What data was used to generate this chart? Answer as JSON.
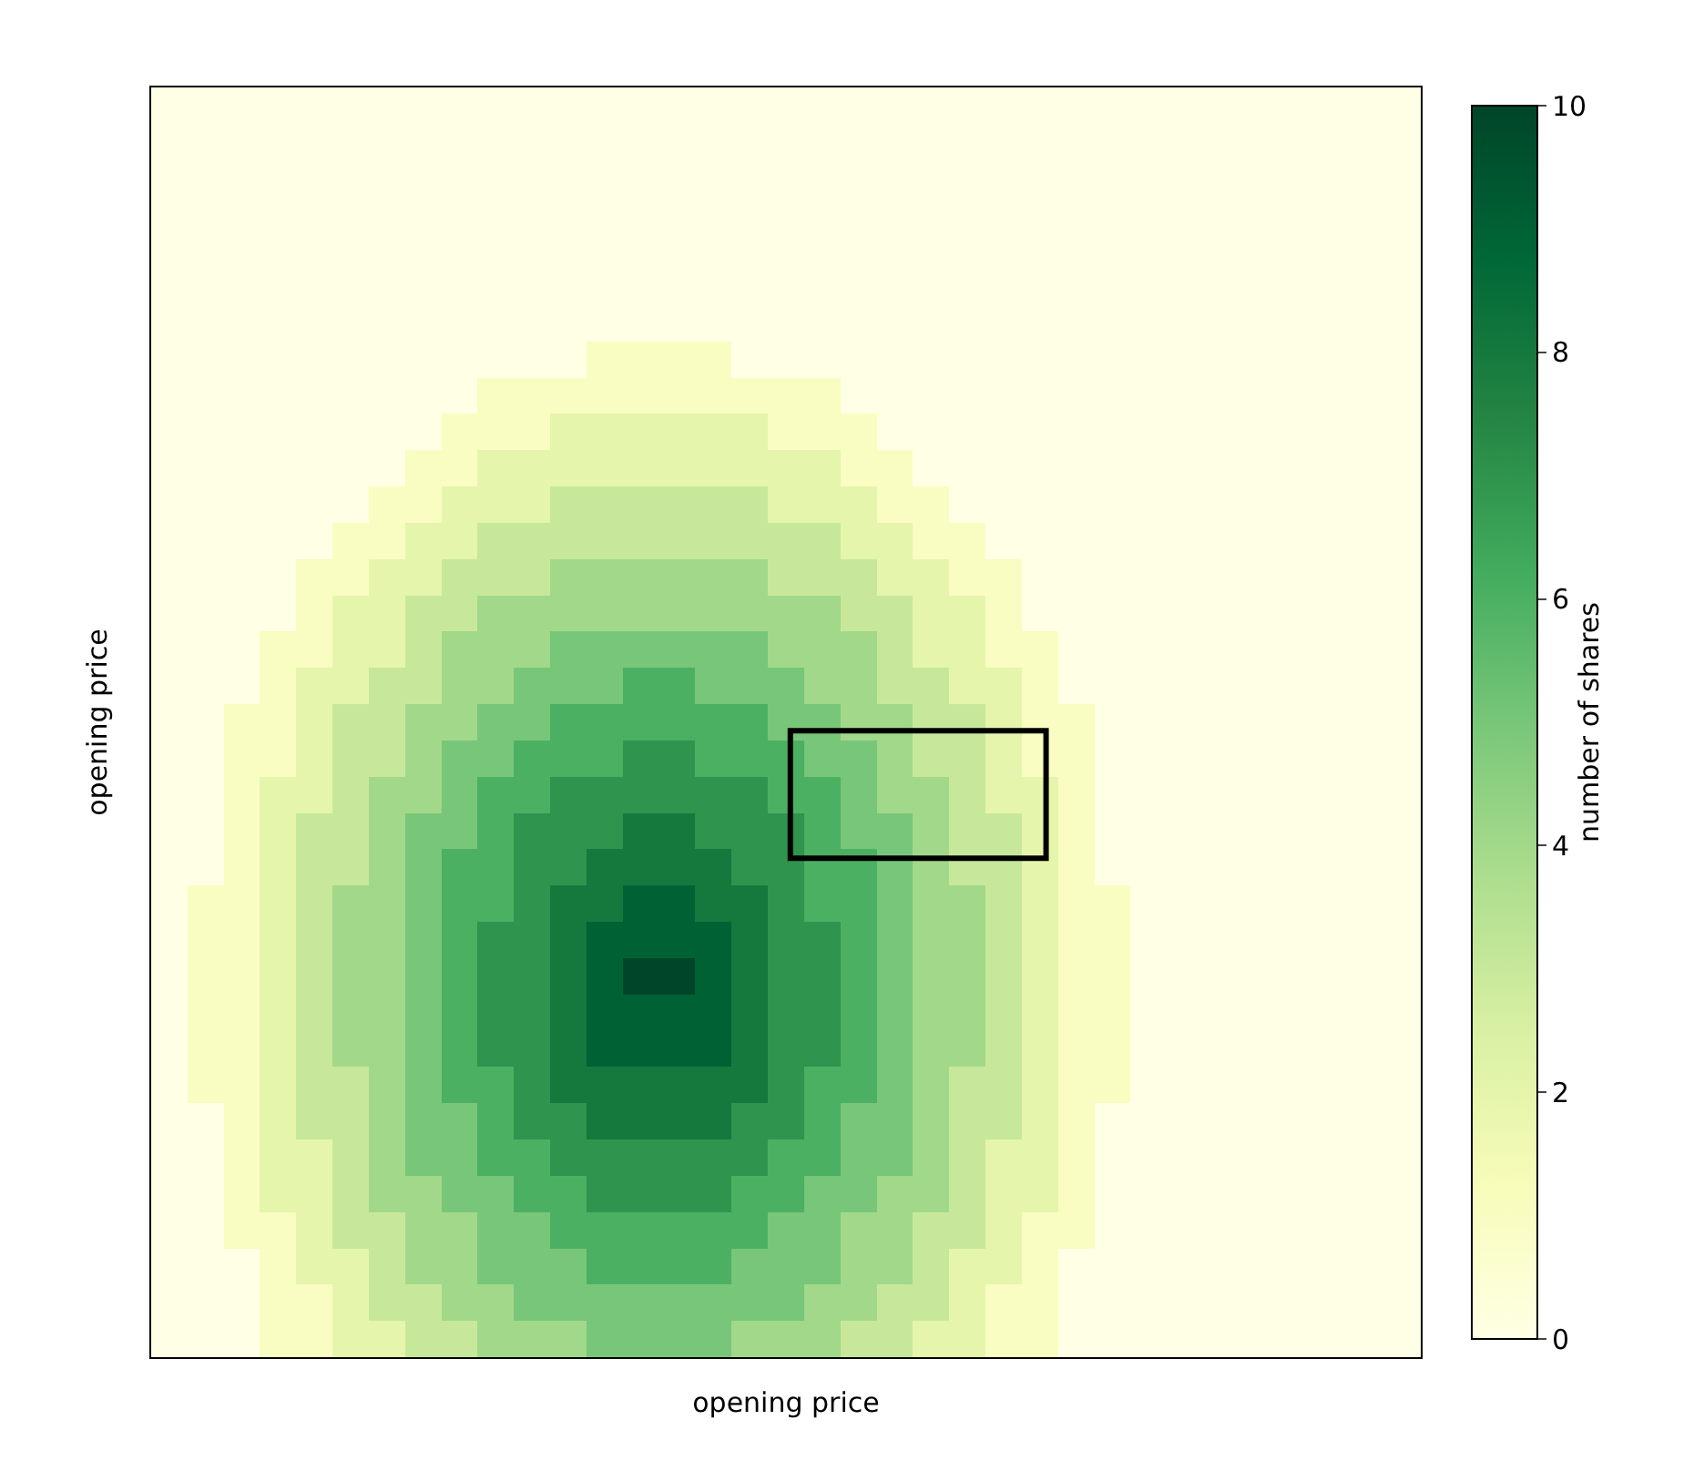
{
  "chart_data": {
    "type": "heatmap",
    "xlabel": "opening price",
    "ylabel": "opening price",
    "clabel": "number of shares",
    "clim": [
      0,
      10
    ],
    "cticks": [
      0,
      2,
      4,
      6,
      8,
      10
    ],
    "tick_labels": false,
    "categories": [
      null,
      null,
      null,
      null,
      null,
      null,
      null,
      null,
      null,
      null,
      null,
      null,
      null,
      null,
      null,
      null,
      null,
      null,
      null,
      null,
      null,
      null,
      null,
      null,
      null,
      null,
      null,
      null,
      null,
      null,
      null,
      null,
      null,
      null,
      null
    ],
    "y_categories": [
      null,
      null,
      null,
      null,
      null,
      null,
      null,
      null,
      null,
      null,
      null,
      null,
      null,
      null,
      null,
      null,
      null,
      null,
      null,
      null,
      null,
      null,
      null,
      null,
      null,
      null,
      null,
      null,
      null,
      null,
      null,
      null,
      null,
      null,
      null
    ],
    "cells": [
      [
        0,
        0,
        0,
        0,
        0,
        0,
        0,
        0,
        0,
        0,
        0,
        0,
        0,
        0,
        0,
        0,
        0,
        0,
        0,
        0,
        0,
        0,
        0,
        0,
        0,
        0,
        0,
        0,
        0,
        0,
        0,
        0,
        0,
        0,
        0
      ],
      [
        0,
        0,
        0,
        0,
        0,
        0,
        0,
        0,
        0,
        0,
        0,
        0,
        0,
        0,
        0,
        0,
        0,
        0,
        0,
        0,
        0,
        0,
        0,
        0,
        0,
        0,
        0,
        0,
        0,
        0,
        0,
        0,
        0,
        0,
        0
      ],
      [
        0,
        0,
        0,
        0,
        0,
        0,
        0,
        0,
        0,
        0,
        0,
        0,
        0,
        0,
        0,
        0,
        0,
        0,
        0,
        0,
        0,
        0,
        0,
        0,
        0,
        0,
        0,
        0,
        0,
        0,
        0,
        0,
        0,
        0,
        0
      ],
      [
        0,
        0,
        0,
        0,
        0,
        0,
        0,
        0,
        0,
        0,
        0,
        0,
        0,
        0,
        0,
        0,
        0,
        0,
        0,
        0,
        0,
        0,
        0,
        0,
        0,
        0,
        0,
        0,
        0,
        0,
        0,
        0,
        0,
        0,
        0
      ],
      [
        0,
        0,
        0,
        0,
        0,
        0,
        0,
        0,
        0,
        0,
        0,
        0,
        0,
        0,
        0,
        0,
        0,
        0,
        0,
        0,
        0,
        0,
        0,
        0,
        0,
        0,
        0,
        0,
        0,
        0,
        0,
        0,
        0,
        0,
        0
      ],
      [
        0,
        0,
        0,
        0,
        0,
        0,
        0,
        0,
        0,
        0,
        0,
        0,
        0,
        0,
        0,
        0,
        0,
        0,
        0,
        0,
        0,
        0,
        0,
        0,
        0,
        0,
        0,
        0,
        0,
        0,
        0,
        0,
        0,
        0,
        0
      ],
      [
        0,
        0,
        0,
        0,
        0,
        0,
        0,
        0,
        0,
        0,
        0,
        0,
        0,
        0,
        0,
        0,
        0,
        0,
        0,
        0,
        0,
        0,
        0,
        0,
        0,
        0,
        0,
        0,
        0,
        0,
        0,
        0,
        0,
        0,
        0
      ],
      [
        0,
        0,
        0,
        0,
        0,
        0,
        0,
        0,
        0,
        0,
        0,
        0,
        1,
        1,
        1,
        1,
        0,
        0,
        0,
        0,
        0,
        0,
        0,
        0,
        0,
        0,
        0,
        0,
        0,
        0,
        0,
        0,
        0,
        0,
        0
      ],
      [
        0,
        0,
        0,
        0,
        0,
        0,
        0,
        0,
        0,
        1,
        1,
        1,
        1,
        1,
        1,
        1,
        1,
        1,
        1,
        0,
        0,
        0,
        0,
        0,
        0,
        0,
        0,
        0,
        0,
        0,
        0,
        0,
        0,
        0,
        0
      ],
      [
        0,
        0,
        0,
        0,
        0,
        0,
        0,
        0,
        1,
        1,
        1,
        2,
        2,
        2,
        2,
        2,
        2,
        1,
        1,
        1,
        0,
        0,
        0,
        0,
        0,
        0,
        0,
        0,
        0,
        0,
        0,
        0,
        0,
        0,
        0
      ],
      [
        0,
        0,
        0,
        0,
        0,
        0,
        0,
        1,
        1,
        2,
        2,
        2,
        2,
        2,
        2,
        2,
        2,
        2,
        2,
        1,
        1,
        0,
        0,
        0,
        0,
        0,
        0,
        0,
        0,
        0,
        0,
        0,
        0,
        0,
        0
      ],
      [
        0,
        0,
        0,
        0,
        0,
        0,
        1,
        1,
        2,
        2,
        2,
        3,
        3,
        3,
        3,
        3,
        3,
        2,
        2,
        2,
        1,
        1,
        0,
        0,
        0,
        0,
        0,
        0,
        0,
        0,
        0,
        0,
        0,
        0,
        0
      ],
      [
        0,
        0,
        0,
        0,
        0,
        1,
        1,
        2,
        2,
        3,
        3,
        3,
        3,
        3,
        3,
        3,
        3,
        3,
        3,
        2,
        2,
        1,
        1,
        0,
        0,
        0,
        0,
        0,
        0,
        0,
        0,
        0,
        0,
        0,
        0
      ],
      [
        0,
        0,
        0,
        0,
        1,
        1,
        2,
        2,
        3,
        3,
        3,
        4,
        4,
        4,
        4,
        4,
        4,
        3,
        3,
        3,
        2,
        2,
        1,
        1,
        0,
        0,
        0,
        0,
        0,
        0,
        0,
        0,
        0,
        0,
        0
      ],
      [
        0,
        0,
        0,
        0,
        1,
        2,
        2,
        3,
        3,
        4,
        4,
        4,
        4,
        4,
        4,
        4,
        4,
        4,
        4,
        3,
        3,
        2,
        2,
        1,
        0,
        0,
        0,
        0,
        0,
        0,
        0,
        0,
        0,
        0,
        0
      ],
      [
        0,
        0,
        0,
        1,
        1,
        2,
        2,
        3,
        4,
        4,
        4,
        5,
        5,
        5,
        5,
        5,
        5,
        4,
        4,
        4,
        3,
        2,
        2,
        1,
        1,
        0,
        0,
        0,
        0,
        0,
        0,
        0,
        0,
        0,
        0
      ],
      [
        0,
        0,
        0,
        1,
        2,
        2,
        3,
        3,
        4,
        4,
        5,
        5,
        5,
        6,
        6,
        5,
        5,
        5,
        4,
        4,
        3,
        3,
        2,
        2,
        1,
        0,
        0,
        0,
        0,
        0,
        0,
        0,
        0,
        0,
        0
      ],
      [
        0,
        0,
        1,
        1,
        2,
        3,
        3,
        4,
        4,
        5,
        5,
        6,
        6,
        6,
        6,
        6,
        6,
        5,
        5,
        4,
        4,
        3,
        3,
        2,
        1,
        1,
        0,
        0,
        0,
        0,
        0,
        0,
        0,
        0,
        0
      ],
      [
        0,
        0,
        1,
        1,
        2,
        3,
        3,
        4,
        5,
        5,
        6,
        6,
        6,
        7,
        7,
        6,
        6,
        6,
        5,
        5,
        4,
        3,
        3,
        2,
        1,
        1,
        0,
        0,
        0,
        0,
        0,
        0,
        0,
        0,
        0
      ],
      [
        0,
        0,
        1,
        2,
        2,
        3,
        4,
        4,
        5,
        6,
        6,
        7,
        7,
        7,
        7,
        7,
        7,
        6,
        6,
        5,
        4,
        4,
        3,
        2,
        2,
        1,
        0,
        0,
        0,
        0,
        0,
        0,
        0,
        0,
        0
      ],
      [
        0,
        0,
        1,
        2,
        3,
        3,
        4,
        5,
        5,
        6,
        7,
        7,
        7,
        8,
        8,
        7,
        7,
        7,
        6,
        5,
        5,
        4,
        3,
        3,
        2,
        1,
        0,
        0,
        0,
        0,
        0,
        0,
        0,
        0,
        0
      ],
      [
        0,
        0,
        1,
        2,
        3,
        3,
        4,
        5,
        6,
        6,
        7,
        7,
        8,
        8,
        8,
        8,
        7,
        7,
        6,
        6,
        5,
        4,
        3,
        3,
        2,
        1,
        0,
        0,
        0,
        0,
        0,
        0,
        0,
        0,
        0
      ],
      [
        0,
        1,
        1,
        2,
        3,
        4,
        4,
        5,
        6,
        6,
        7,
        8,
        8,
        9,
        9,
        8,
        8,
        7,
        6,
        6,
        5,
        4,
        4,
        3,
        2,
        1,
        1,
        0,
        0,
        0,
        0,
        0,
        0,
        0,
        0
      ],
      [
        0,
        1,
        1,
        2,
        3,
        4,
        4,
        5,
        6,
        7,
        7,
        8,
        9,
        9,
        9,
        9,
        8,
        7,
        7,
        6,
        5,
        4,
        4,
        3,
        2,
        1,
        1,
        0,
        0,
        0,
        0,
        0,
        0,
        0,
        0
      ],
      [
        0,
        1,
        1,
        2,
        3,
        4,
        4,
        5,
        6,
        7,
        7,
        8,
        9,
        10,
        10,
        9,
        8,
        7,
        7,
        6,
        5,
        4,
        4,
        3,
        2,
        1,
        1,
        0,
        0,
        0,
        0,
        0,
        0,
        0,
        0
      ],
      [
        0,
        1,
        1,
        2,
        3,
        4,
        4,
        5,
        6,
        7,
        7,
        8,
        9,
        9,
        9,
        9,
        8,
        7,
        7,
        6,
        5,
        4,
        4,
        3,
        2,
        1,
        1,
        0,
        0,
        0,
        0,
        0,
        0,
        0,
        0
      ],
      [
        0,
        1,
        1,
        2,
        3,
        4,
        4,
        5,
        6,
        7,
        7,
        8,
        9,
        9,
        9,
        9,
        8,
        7,
        7,
        6,
        5,
        4,
        4,
        3,
        2,
        1,
        1,
        0,
        0,
        0,
        0,
        0,
        0,
        0,
        0
      ],
      [
        0,
        1,
        1,
        2,
        3,
        3,
        4,
        5,
        6,
        6,
        7,
        8,
        8,
        8,
        8,
        8,
        8,
        7,
        6,
        6,
        5,
        4,
        3,
        3,
        2,
        1,
        1,
        0,
        0,
        0,
        0,
        0,
        0,
        0,
        0
      ],
      [
        0,
        0,
        1,
        2,
        3,
        3,
        4,
        5,
        5,
        6,
        7,
        7,
        8,
        8,
        8,
        8,
        7,
        7,
        6,
        5,
        5,
        4,
        3,
        3,
        2,
        1,
        0,
        0,
        0,
        0,
        0,
        0,
        0,
        0,
        0
      ],
      [
        0,
        0,
        1,
        2,
        2,
        3,
        4,
        5,
        5,
        6,
        6,
        7,
        7,
        7,
        7,
        7,
        7,
        6,
        6,
        5,
        5,
        4,
        3,
        2,
        2,
        1,
        0,
        0,
        0,
        0,
        0,
        0,
        0,
        0,
        0
      ],
      [
        0,
        0,
        1,
        2,
        2,
        3,
        4,
        4,
        5,
        5,
        6,
        6,
        7,
        7,
        7,
        7,
        6,
        6,
        5,
        5,
        4,
        4,
        3,
        2,
        2,
        1,
        0,
        0,
        0,
        0,
        0,
        0,
        0,
        0,
        0
      ],
      [
        0,
        0,
        1,
        1,
        2,
        3,
        3,
        4,
        4,
        5,
        5,
        6,
        6,
        6,
        6,
        6,
        6,
        5,
        5,
        4,
        4,
        3,
        3,
        2,
        1,
        1,
        0,
        0,
        0,
        0,
        0,
        0,
        0,
        0,
        0
      ],
      [
        0,
        0,
        0,
        1,
        2,
        2,
        3,
        4,
        4,
        5,
        5,
        5,
        6,
        6,
        6,
        6,
        5,
        5,
        5,
        4,
        4,
        3,
        2,
        2,
        1,
        0,
        0,
        0,
        0,
        0,
        0,
        0,
        0,
        0,
        0
      ],
      [
        0,
        0,
        0,
        1,
        1,
        2,
        3,
        3,
        4,
        4,
        5,
        5,
        5,
        5,
        5,
        5,
        5,
        5,
        4,
        4,
        3,
        3,
        2,
        1,
        1,
        0,
        0,
        0,
        0,
        0,
        0,
        0,
        0,
        0,
        0
      ],
      [
        0,
        0,
        0,
        1,
        1,
        2,
        2,
        3,
        3,
        4,
        4,
        4,
        5,
        5,
        5,
        5,
        4,
        4,
        4,
        3,
        3,
        2,
        2,
        1,
        1,
        0,
        0,
        0,
        0,
        0,
        0,
        0,
        0,
        0,
        0
      ]
    ]
  }
}
